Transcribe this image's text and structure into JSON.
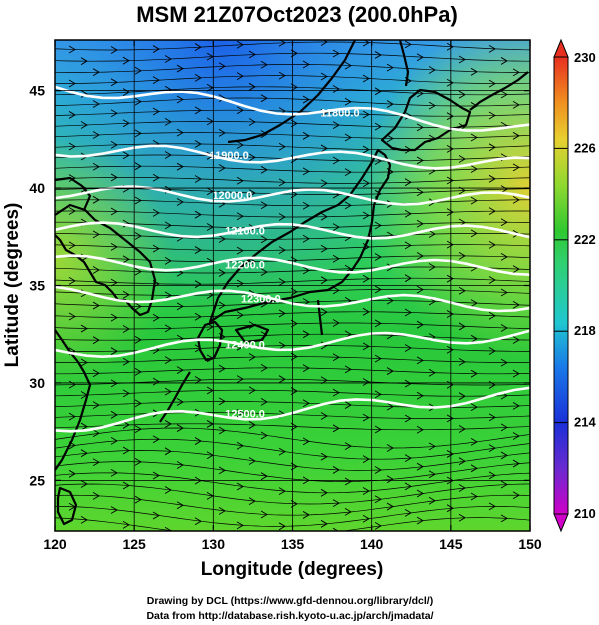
{
  "chart_data": {
    "type": "heatmap",
    "title": "MSM 21Z07Oct2023 (200.0hPa)",
    "xlabel": "Longitude (degrees)",
    "ylabel": "Latitude  (degrees)",
    "xlim": [
      120,
      150
    ],
    "ylim": [
      22.4,
      47.6
    ],
    "x_ticks": [
      120,
      125,
      130,
      135,
      140,
      145,
      150
    ],
    "y_ticks": [
      25,
      30,
      35,
      40,
      45
    ],
    "colorbar": {
      "min": 210,
      "max": 230,
      "ticks": [
        210,
        214,
        218,
        222,
        226,
        230
      ],
      "extend": "both"
    },
    "contours": [
      {
        "level": "11800.0",
        "lat_west": 45.2,
        "lat_east": 43.0,
        "label_lon": 138.0
      },
      {
        "level": "11900.0",
        "lat_west": 42.0,
        "lat_east": 41.2,
        "label_lon": 131.0
      },
      {
        "level": "12000.0",
        "lat_west": 39.8,
        "lat_east": 39.4,
        "label_lon": 131.2
      },
      {
        "level": "12100.0",
        "lat_west": 37.9,
        "lat_east": 37.7,
        "label_lon": 132.0
      },
      {
        "level": "12200.0",
        "lat_west": 36.2,
        "lat_east": 35.9,
        "label_lon": 132.0
      },
      {
        "level": "12300.0",
        "lat_west": 34.6,
        "lat_east": 34.0,
        "label_lon": 133.0
      },
      {
        "level": "12400.0",
        "lat_west": 31.6,
        "lat_east": 32.5,
        "label_lon": 132.0
      },
      {
        "level": "12500.0",
        "lat_west": 27.8,
        "lat_east": 29.4,
        "label_lon": 132.0
      }
    ]
  },
  "credits": {
    "line1": "Drawing by DCL (https://www.gfd-dennou.org/library/dcl/)",
    "line2": "Data from http://database.rish.kyoto-u.ac.jp/arch/jmadata/"
  }
}
